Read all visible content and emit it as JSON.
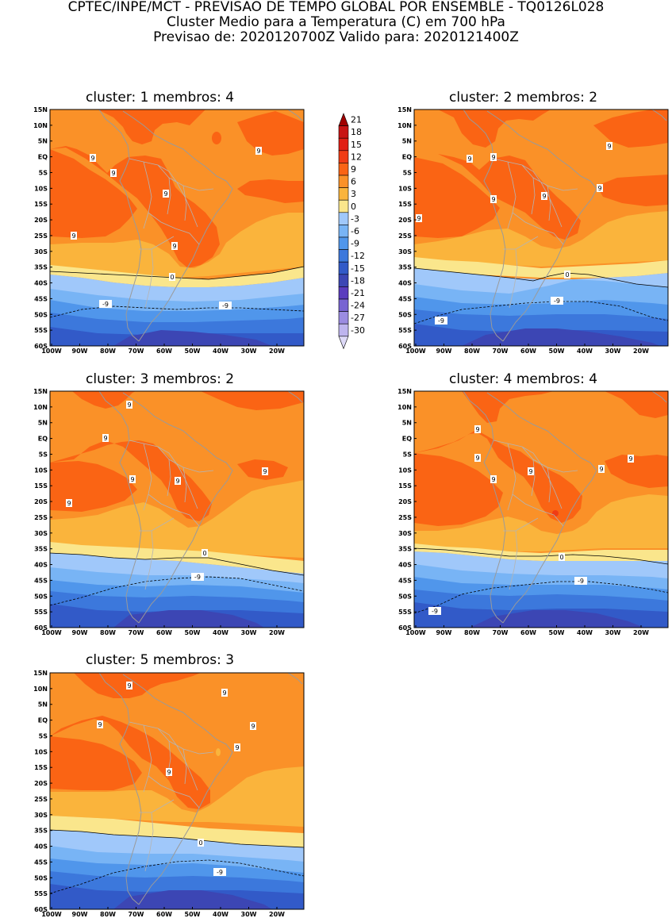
{
  "header": {
    "line1": "CPTEC/INPE/MCT - PREVISAO DE TEMPO GLOBAL POR ENSEMBLE - TQ0126L028",
    "line2": "Cluster Medio para a Temperatura (C) em 700 hPa",
    "line3": "Previsao de: 2020120700Z    Valido para: 2020121400Z"
  },
  "panels": [
    {
      "cluster": "1",
      "membros": "4",
      "title": "cluster: 1   membros: 4"
    },
    {
      "cluster": "2",
      "membros": "2",
      "title": "cluster: 2   membros: 2"
    },
    {
      "cluster": "3",
      "membros": "2",
      "title": "cluster: 3   membros: 2"
    },
    {
      "cluster": "4",
      "membros": "4",
      "title": "cluster: 4   membros: 4"
    },
    {
      "cluster": "5",
      "membros": "3",
      "title": "cluster: 5   membros: 3"
    }
  ],
  "axes": {
    "lat_labels": [
      "15N",
      "10N",
      "5N",
      "EQ",
      "5S",
      "10S",
      "15S",
      "20S",
      "25S",
      "30S",
      "35S",
      "40S",
      "45S",
      "50S",
      "55S",
      "60S"
    ],
    "lon_labels": [
      "100W",
      "90W",
      "80W",
      "70W",
      "60W",
      "50W",
      "40W",
      "30W",
      "20W"
    ]
  },
  "colorbar": {
    "levels": [
      "21",
      "18",
      "15",
      "12",
      "9",
      "6",
      "3",
      "0",
      "-3",
      "-6",
      "-9",
      "-12",
      "-15",
      "-18",
      "-21",
      "-24",
      "-27",
      "-30"
    ],
    "colors": [
      "#a00000",
      "#c81414",
      "#e11e14",
      "#f03c14",
      "#fa6414",
      "#fa9128",
      "#fab43c",
      "#fae68c",
      "#a0c8fa",
      "#78b4f5",
      "#5096eb",
      "#3c78dc",
      "#325ac8",
      "#3c46b4",
      "#5a3cbe",
      "#7864d2",
      "#9b8ce1",
      "#bdb4ee",
      "#ddd9f7"
    ]
  },
  "contour_labels": {
    "p1": [
      "9",
      "9",
      "9",
      "9",
      "9",
      "9",
      "0",
      "-9",
      "-9"
    ],
    "p2": [
      "9",
      "9",
      "9",
      "9",
      "9",
      "9",
      "9",
      "0",
      "-9",
      "-9"
    ],
    "p3": [
      "9",
      "9",
      "9",
      "9",
      "9",
      "9",
      "0",
      "-9"
    ],
    "p4": [
      "9",
      "9",
      "9",
      "9",
      "9",
      "9",
      "0",
      "-9",
      "-9"
    ],
    "p5": [
      "9",
      "9",
      "9",
      "9",
      "9",
      "9",
      "0",
      "-9"
    ]
  }
}
